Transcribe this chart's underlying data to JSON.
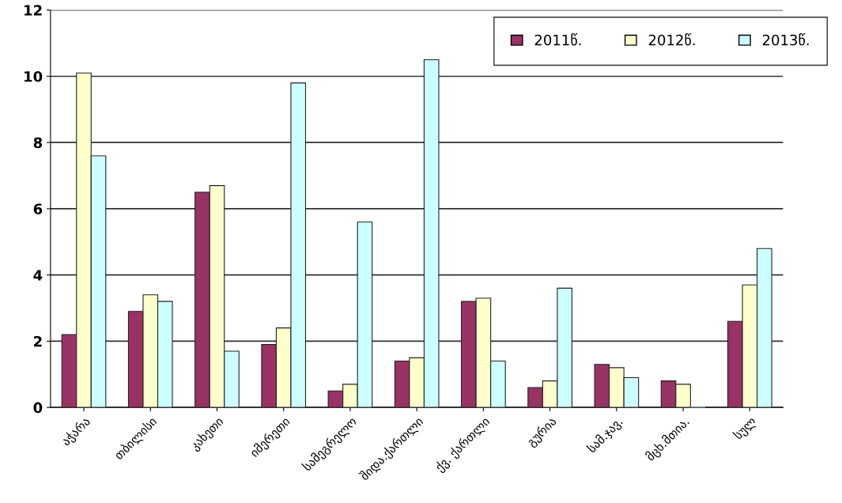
{
  "chart_data": {
    "type": "bar",
    "categories": [
      "აჭარა",
      "თბილისი",
      "კახეთი",
      "იმერეთი",
      "სამეგრელო",
      "შიდა.ქართლი",
      "ქვ. ქართლი",
      "გურია",
      "სამ.ჯავ.",
      "მცხ.მთია.",
      "სულ"
    ],
    "series": [
      {
        "name": "2011წ.",
        "color": "#993366",
        "values": [
          2.2,
          2.9,
          6.5,
          1.9,
          0.5,
          1.4,
          3.2,
          0.6,
          1.3,
          0.8,
          2.6
        ]
      },
      {
        "name": "2012წ.",
        "color": "#ffffcc",
        "values": [
          10.1,
          3.4,
          6.7,
          2.4,
          0.7,
          1.5,
          3.3,
          0.8,
          1.2,
          0.7,
          3.7
        ]
      },
      {
        "name": "2013წ.",
        "color": "#ccffff",
        "values": [
          7.6,
          3.2,
          1.7,
          9.8,
          5.6,
          10.5,
          1.4,
          3.6,
          0.9,
          0.0,
          4.8
        ]
      }
    ],
    "ylim": [
      0,
      12
    ],
    "yticks": [
      0,
      2,
      4,
      6,
      8,
      10,
      12
    ],
    "grid": "y",
    "legend": "top right"
  }
}
